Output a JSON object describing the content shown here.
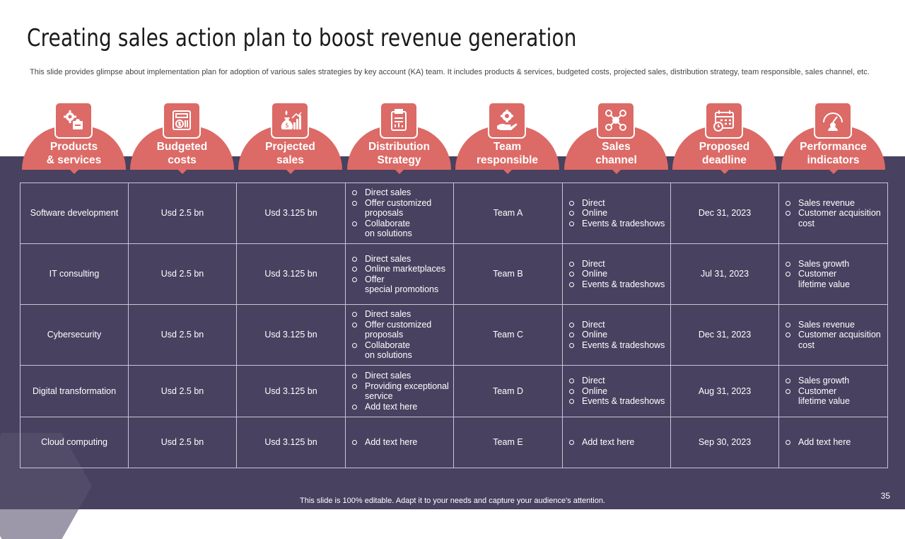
{
  "title": "Creating sales action plan to boost revenue generation",
  "subtitle": "This slide provides glimpse about implementation plan for adoption of various sales strategies by key account (KA)  team. It includes products & services, budgeted costs, projected sales, distribution strategy, team responsible, sales channel, etc.",
  "headers": [
    {
      "label": "Products\n& services",
      "icon": "gears-puzzle-icon"
    },
    {
      "label": "Budgeted\ncosts",
      "icon": "budget-calculator-icon"
    },
    {
      "label": "Projected\nsales",
      "icon": "money-bag-growth-chart-icon"
    },
    {
      "label": "Distribution\nStrategy",
      "icon": "clipboard-chart-icon"
    },
    {
      "label": "Team\nresponsible",
      "icon": "hand-gear-team-icon"
    },
    {
      "label": "Sales\nchannel",
      "icon": "network-nodes-icon"
    },
    {
      "label": "Proposed\ndeadline",
      "icon": "calendar-clock-icon"
    },
    {
      "label": "Performance\nindicators",
      "icon": "gauge-user-icon"
    }
  ],
  "rows": [
    {
      "product": "Software development",
      "budget": "Usd 2.5 bn",
      "projected": "Usd 3.125 bn",
      "distribution": [
        "Direct sales",
        "Offer customized\nproposals",
        "Collaborate\non solutions"
      ],
      "team": "Team A",
      "channels": [
        "Direct",
        "Online",
        "Events & tradeshows"
      ],
      "deadline": "Dec 31, 2023",
      "indicators": [
        "Sales revenue",
        "Customer acquisition\ncost"
      ]
    },
    {
      "product": "IT consulting",
      "budget": "Usd 2.5 bn",
      "projected": "Usd 3.125 bn",
      "distribution": [
        "Direct sales",
        "Online marketplaces",
        "Offer\nspecial promotions"
      ],
      "team": "Team B",
      "channels": [
        "Direct",
        "Online",
        "Events & tradeshows"
      ],
      "deadline": "Jul 31, 2023",
      "indicators": [
        "Sales growth",
        "Customer\nlifetime value"
      ]
    },
    {
      "product": "Cybersecurity",
      "budget": "Usd 2.5 bn",
      "projected": "Usd 3.125 bn",
      "distribution": [
        "Direct sales",
        "Offer customized\nproposals",
        "Collaborate\non solutions"
      ],
      "team": "Team C",
      "channels": [
        "Direct",
        "Online",
        "Events & tradeshows"
      ],
      "deadline": "Dec 31, 2023",
      "indicators": [
        "Sales revenue",
        "Customer acquisition\ncost"
      ]
    },
    {
      "product": "Digital transformation",
      "budget": "Usd 2.5 bn",
      "projected": "Usd 3.125 bn",
      "distribution": [
        "Direct sales",
        "Providing exceptional\nservice",
        "Add text here"
      ],
      "team": "Team D",
      "channels": [
        "Direct",
        "Online",
        "Events & tradeshows"
      ],
      "deadline": "Aug 31, 2023",
      "indicators": [
        "Sales growth",
        "Customer\nlifetime value"
      ]
    },
    {
      "product": "Cloud computing",
      "budget": "Usd 2.5 bn",
      "projected": "Usd 3.125 bn",
      "distribution": [
        "Add text here"
      ],
      "team": "Team E",
      "channels": [
        "Add text here"
      ],
      "deadline": "Sep 30, 2023",
      "indicators": [
        "Add text here"
      ]
    }
  ],
  "footer": "This slide is 100% editable.  Adapt it to your needs and capture your audience's attention.",
  "page_number": "35",
  "colors": {
    "accent": "#dc6a66",
    "band": "#484160",
    "grid": "#c9c6d3"
  }
}
